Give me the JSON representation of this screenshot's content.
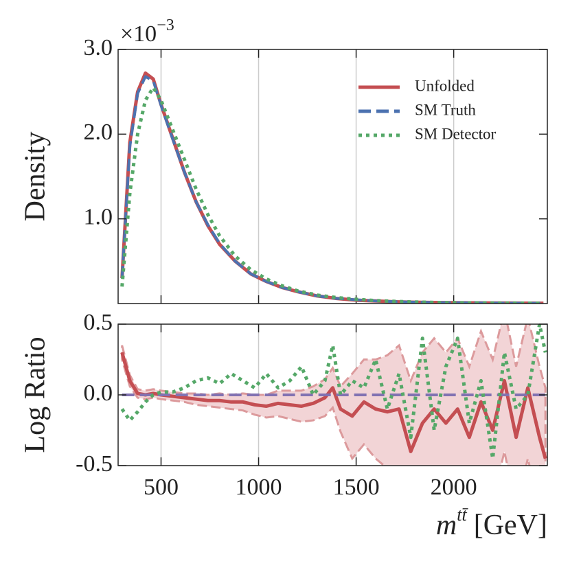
{
  "chart_data": [
    {
      "type": "line",
      "ylabel": "Density",
      "y_multiplier": "×10",
      "y_multiplier_exp": "−3",
      "xlim": [
        280,
        2480
      ],
      "xticks": [
        500,
        1000,
        1500,
        2000
      ],
      "ylim": [
        0,
        3.0
      ],
      "yticks": [
        {
          "value": 1,
          "label": "1.0"
        },
        {
          "value": 2,
          "label": "2.0"
        },
        {
          "value": 3,
          "label": "3.0"
        }
      ],
      "grid": true,
      "legend": "upper right",
      "x": [
        300,
        340,
        380,
        420,
        460,
        500,
        560,
        620,
        680,
        740,
        800,
        880,
        960,
        1040,
        1120,
        1200,
        1300,
        1400,
        1500,
        1600,
        1700,
        1800,
        1900,
        2000,
        2100,
        2200,
        2300,
        2400,
        2460
      ],
      "series": [
        {
          "name": "Unfolded",
          "color": "#c44e52",
          "style": "solid",
          "values": [
            0.3,
            1.9,
            2.5,
            2.72,
            2.65,
            2.35,
            1.95,
            1.55,
            1.2,
            0.92,
            0.7,
            0.5,
            0.35,
            0.26,
            0.19,
            0.14,
            0.09,
            0.06,
            0.04,
            0.03,
            0.02,
            0.015,
            0.012,
            0.01,
            0.008,
            0.006,
            0.005,
            0.004,
            0.003
          ]
        },
        {
          "name": "SM Truth",
          "color": "#4c72b0",
          "style": "dashed",
          "values": [
            0.3,
            1.85,
            2.48,
            2.68,
            2.63,
            2.34,
            1.94,
            1.55,
            1.2,
            0.93,
            0.71,
            0.5,
            0.35,
            0.26,
            0.19,
            0.14,
            0.09,
            0.06,
            0.045,
            0.03,
            0.022,
            0.016,
            0.012,
            0.01,
            0.008,
            0.006,
            0.005,
            0.004,
            0.003
          ]
        },
        {
          "name": "SM Detector",
          "color": "#55a868",
          "style": "dotted",
          "values": [
            0.2,
            1.3,
            2.0,
            2.4,
            2.55,
            2.4,
            2.05,
            1.7,
            1.35,
            1.05,
            0.8,
            0.56,
            0.4,
            0.29,
            0.21,
            0.15,
            0.1,
            0.07,
            0.05,
            0.035,
            0.025,
            0.018,
            0.013,
            0.01,
            0.008,
            0.006,
            0.005,
            0.004,
            0.003
          ]
        }
      ]
    },
    {
      "type": "line",
      "ylabel": "Log Ratio",
      "xlabel_main": "m",
      "xlabel_sup": "tt̄",
      "xlabel_unit": "[GeV]",
      "xlim": [
        280,
        2480
      ],
      "xticks": [
        500,
        1000,
        1500,
        2000
      ],
      "ylim": [
        -0.5,
        0.5
      ],
      "yticks": [
        -0.5,
        {
          "value": 0,
          "label": "0.0"
        },
        0.5
      ],
      "grid": true,
      "x": [
        300,
        340,
        380,
        420,
        460,
        500,
        560,
        620,
        680,
        740,
        800,
        860,
        920,
        980,
        1040,
        1100,
        1160,
        1220,
        1280,
        1340,
        1380,
        1420,
        1480,
        1540,
        1600,
        1660,
        1720,
        1780,
        1840,
        1900,
        1960,
        2020,
        2080,
        2140,
        2200,
        2260,
        2320,
        2380,
        2440,
        2470
      ],
      "series": [
        {
          "color": "#c44e52",
          "style": "solid",
          "band_color": "#f2d4d6",
          "band_edge": "#dc9a9c",
          "values": [
            0.3,
            0.1,
            0.01,
            0.0,
            0.01,
            0.0,
            -0.01,
            -0.02,
            -0.03,
            -0.04,
            -0.04,
            -0.05,
            -0.05,
            -0.07,
            -0.08,
            -0.06,
            -0.07,
            -0.08,
            -0.06,
            -0.02,
            0.05,
            -0.1,
            -0.15,
            -0.05,
            -0.1,
            -0.12,
            -0.1,
            -0.4,
            -0.2,
            -0.1,
            -0.2,
            -0.1,
            -0.3,
            -0.05,
            -0.25,
            0.1,
            -0.3,
            0.05,
            -0.3,
            -0.45
          ],
          "error": [
            0.05,
            0.04,
            0.03,
            0.03,
            0.03,
            0.03,
            0.03,
            0.03,
            0.04,
            0.04,
            0.05,
            0.05,
            0.06,
            0.07,
            0.08,
            0.09,
            0.1,
            0.11,
            0.12,
            0.13,
            0.14,
            0.16,
            0.3,
            0.3,
            0.35,
            0.4,
            0.45,
            0.5,
            0.5,
            0.5,
            0.5,
            0.5,
            0.5,
            0.5,
            0.5,
            0.5,
            0.5,
            0.5,
            0.5,
            0.5
          ]
        },
        {
          "color": "#8172b2",
          "style": "dashed",
          "values": [
            0,
            0,
            0,
            0,
            0,
            0,
            0,
            0,
            0,
            0,
            0,
            0,
            0,
            0,
            0,
            0,
            0,
            0,
            0,
            0,
            0,
            0,
            0,
            0,
            0,
            0,
            0,
            0,
            0,
            0,
            0,
            0,
            0,
            0,
            0,
            0,
            0,
            0,
            0,
            0
          ]
        },
        {
          "color": "#55a868",
          "style": "dotted",
          "values": [
            -0.1,
            -0.18,
            -0.12,
            -0.05,
            0.0,
            0.02,
            0.02,
            0.05,
            0.1,
            0.12,
            0.08,
            0.15,
            0.1,
            0.05,
            0.15,
            0.05,
            0.1,
            0.2,
            0.0,
            0.1,
            0.35,
            0.0,
            0.1,
            0.05,
            0.25,
            -0.1,
            0.15,
            -0.3,
            0.4,
            -0.25,
            0.2,
            0.4,
            -0.2,
            0.1,
            -0.45,
            0.3,
            -0.1,
            0.0,
            0.5,
            0.3
          ]
        }
      ]
    }
  ]
}
